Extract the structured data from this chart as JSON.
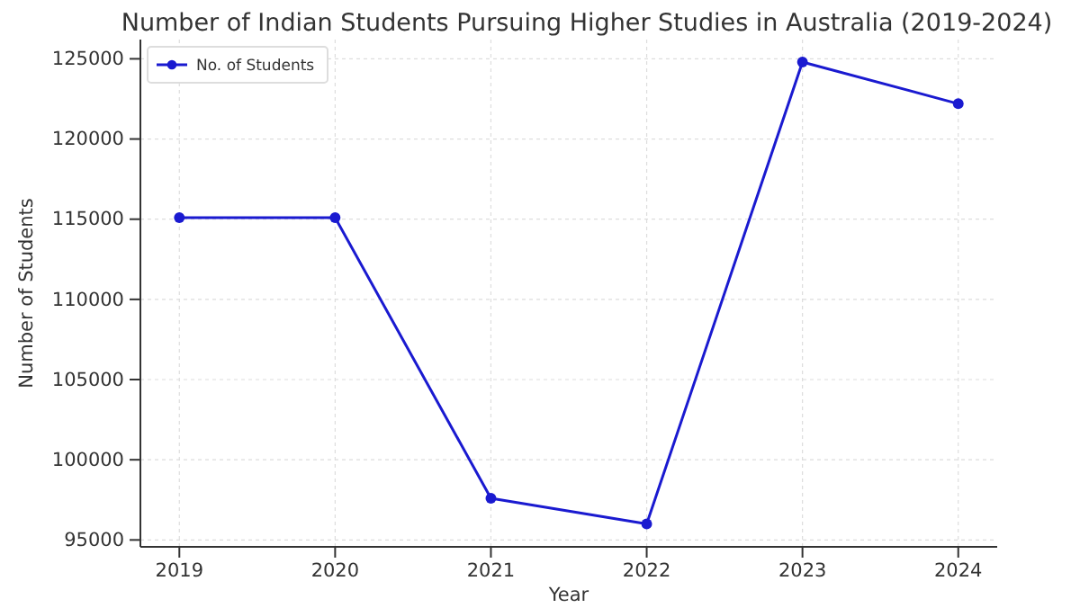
{
  "chart_data": {
    "type": "line",
    "title": "Number of Indian Students Pursuing Higher Studies in Australia (2019-2024)",
    "xlabel": "Year",
    "ylabel": "Number of Students",
    "x": [
      2019,
      2020,
      2021,
      2022,
      2023,
      2024
    ],
    "series": [
      {
        "name": "No. of Students",
        "color": "#1a1ad0",
        "values": [
          115100,
          115100,
          97600,
          96000,
          124800,
          122200
        ]
      }
    ],
    "xlim": [
      2018.75,
      2024.25
    ],
    "xticks": [
      2019,
      2020,
      2021,
      2022,
      2023,
      2024
    ],
    "ylim": [
      94570,
      126200
    ],
    "yticks": [
      95000,
      100000,
      105000,
      110000,
      115000,
      120000,
      125000
    ],
    "grid": true,
    "legend": "top left",
    "marker": "circle",
    "line_style": "solid"
  }
}
